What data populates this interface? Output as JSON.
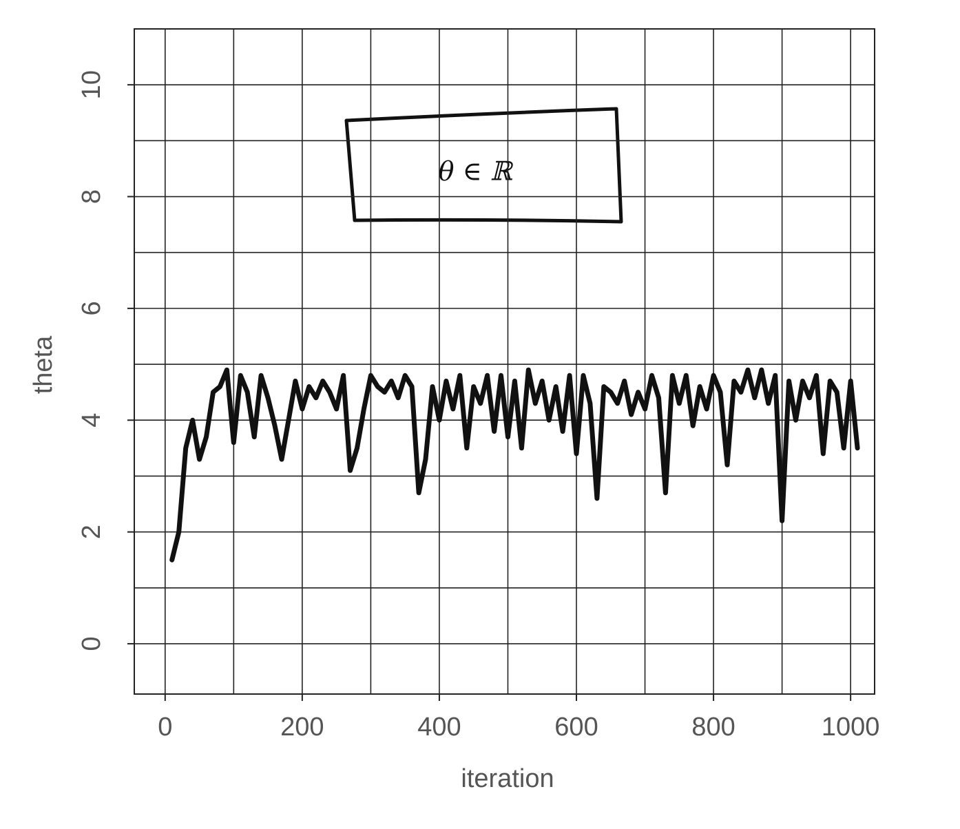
{
  "chart_data": {
    "type": "line",
    "xlabel": "iteration",
    "ylabel": "theta",
    "annotation": "θ ∈ ℝ",
    "color": "#111111",
    "xlim": [
      -45,
      1035
    ],
    "ylim": [
      -0.9,
      11
    ],
    "xticks": [
      0,
      200,
      400,
      600,
      800,
      1000
    ],
    "yticks": [
      0,
      2,
      4,
      6,
      8,
      10
    ],
    "xgrid": [
      0,
      100,
      200,
      300,
      400,
      500,
      600,
      700,
      800,
      900,
      1000
    ],
    "ygrid": [
      0,
      1,
      2,
      3,
      4,
      5,
      6,
      7,
      8,
      9,
      10
    ],
    "grid": true,
    "x": [
      10,
      20,
      30,
      40,
      50,
      60,
      70,
      80,
      90,
      100,
      110,
      120,
      130,
      140,
      150,
      160,
      170,
      180,
      190,
      200,
      210,
      220,
      230,
      240,
      250,
      260,
      270,
      280,
      290,
      300,
      310,
      320,
      330,
      340,
      350,
      360,
      370,
      380,
      390,
      400,
      410,
      420,
      430,
      440,
      450,
      460,
      470,
      480,
      490,
      500,
      510,
      520,
      530,
      540,
      550,
      560,
      570,
      580,
      590,
      600,
      610,
      620,
      630,
      640,
      650,
      660,
      670,
      680,
      690,
      700,
      710,
      720,
      730,
      740,
      750,
      760,
      770,
      780,
      790,
      800,
      810,
      820,
      830,
      840,
      850,
      860,
      870,
      880,
      890,
      900,
      910,
      920,
      930,
      940,
      950,
      960,
      970,
      980,
      990,
      1000,
      1010
    ],
    "values": [
      1.5,
      2.0,
      3.5,
      4.0,
      3.3,
      3.7,
      4.5,
      4.6,
      4.9,
      3.6,
      4.8,
      4.5,
      3.7,
      4.8,
      4.4,
      3.9,
      3.3,
      4.0,
      4.7,
      4.2,
      4.6,
      4.4,
      4.7,
      4.5,
      4.2,
      4.8,
      3.1,
      3.5,
      4.2,
      4.8,
      4.6,
      4.5,
      4.7,
      4.4,
      4.8,
      4.6,
      2.7,
      3.3,
      4.6,
      4.0,
      4.7,
      4.2,
      4.8,
      3.5,
      4.6,
      4.3,
      4.8,
      3.8,
      4.8,
      3.7,
      4.7,
      3.5,
      4.9,
      4.3,
      4.7,
      4.0,
      4.6,
      3.8,
      4.8,
      3.4,
      4.8,
      4.3,
      2.6,
      4.6,
      4.5,
      4.3,
      4.7,
      4.1,
      4.5,
      4.2,
      4.8,
      4.4,
      2.7,
      4.8,
      4.3,
      4.8,
      3.9,
      4.6,
      4.2,
      4.8,
      4.5,
      3.2,
      4.7,
      4.5,
      4.9,
      4.4,
      4.9,
      4.3,
      4.8,
      2.2,
      4.7,
      4.0,
      4.7,
      4.4,
      4.8,
      3.4,
      4.7,
      4.5,
      3.5,
      4.7,
      3.5
    ]
  }
}
